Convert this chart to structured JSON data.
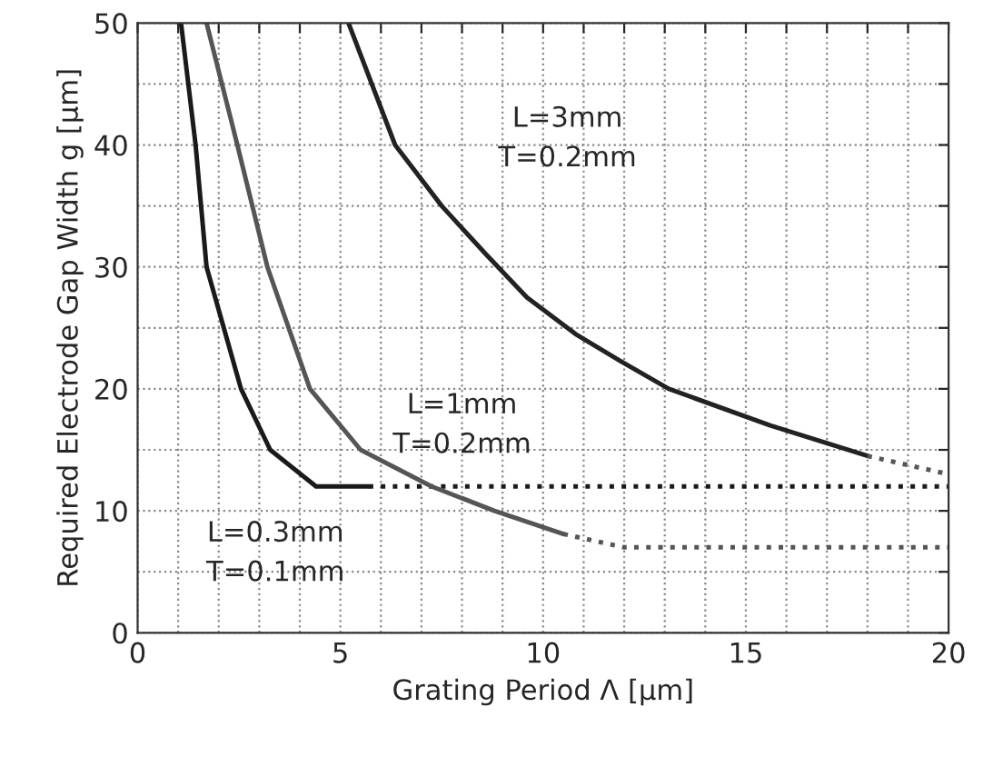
{
  "chart_data": {
    "type": "line",
    "xlabel": "Grating Period Λ [μm]",
    "ylabel": "Required Electrode Gap Width g [μm]",
    "xlim": [
      0,
      20
    ],
    "ylim": [
      0,
      50
    ],
    "xticks": [
      0,
      {
        "value": 1,
        "label": null
      },
      {
        "value": 2,
        "label": null
      },
      {
        "value": 3,
        "label": null
      },
      {
        "value": 4,
        "label": null
      },
      5,
      {
        "value": 6,
        "label": null
      },
      {
        "value": 7,
        "label": null
      },
      {
        "value": 8,
        "label": null
      },
      {
        "value": 9,
        "label": null
      },
      10,
      {
        "value": 11,
        "label": null
      },
      {
        "value": 12,
        "label": null
      },
      {
        "value": 13,
        "label": null
      },
      {
        "value": 14,
        "label": null
      },
      15,
      {
        "value": 16,
        "label": null
      },
      {
        "value": 17,
        "label": null
      },
      {
        "value": 18,
        "label": null
      },
      {
        "value": 19,
        "label": null
      },
      20
    ],
    "yticks": [
      0,
      {
        "value": 5,
        "label": null
      },
      10,
      {
        "value": 15,
        "label": null
      },
      20,
      {
        "value": 25,
        "label": null
      },
      30,
      {
        "value": 35,
        "label": null
      },
      40,
      {
        "value": 45,
        "label": null
      },
      50
    ],
    "grid": true,
    "legend": false,
    "marker": "none",
    "series": [
      {
        "color": "#1a1a1a",
        "line_style": "solid",
        "x": [
          1.07,
          1.43,
          1.7,
          2.55,
          3.27,
          4.4,
          5.7
        ],
        "values": [
          50,
          40,
          30,
          20,
          15,
          12,
          12
        ]
      },
      {
        "color": "#1a1a1a",
        "line_style": "dotted",
        "x": [
          5.7,
          20
        ],
        "values": [
          12,
          12
        ]
      },
      {
        "color": "#555555",
        "line_style": "solid",
        "x": [
          1.7,
          2.46,
          3.2,
          4.25,
          5.5,
          7.25,
          8.8,
          10.5
        ],
        "values": [
          50,
          40,
          30,
          20,
          15,
          12,
          10,
          8.1
        ]
      },
      {
        "color": "#555555",
        "line_style": "dotted",
        "x": [
          10.5,
          12.0,
          20
        ],
        "values": [
          8.1,
          7.0,
          7.0
        ]
      },
      {
        "color": "#222222",
        "line_style": "solid",
        "x": [
          5.2,
          6.35,
          7.5,
          8.6,
          9.6,
          10.8,
          11.9,
          13.1,
          15.6,
          18.0
        ],
        "values": [
          50,
          40,
          35,
          31,
          27.5,
          24.5,
          22.3,
          20,
          17,
          14.5
        ]
      },
      {
        "color": "#555555",
        "line_style": "dotted",
        "x": [
          18.0,
          20
        ],
        "values": [
          14.5,
          13.0
        ]
      }
    ],
    "annotations": [
      "L=0.3mm\nT=0.1mm",
      "L=1mm\nT=0.2mm",
      "L=3mm\nT=0.2mm"
    ]
  }
}
